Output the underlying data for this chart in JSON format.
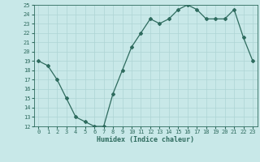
{
  "x": [
    0,
    1,
    2,
    3,
    4,
    5,
    6,
    7,
    8,
    9,
    10,
    11,
    12,
    13,
    14,
    15,
    16,
    17,
    18,
    19,
    20,
    21,
    22,
    23
  ],
  "y": [
    19,
    18.5,
    17,
    15,
    13,
    12.5,
    12,
    12,
    15.5,
    18,
    20.5,
    22,
    23.5,
    23,
    23.5,
    24.5,
    25,
    24.5,
    23.5,
    23.5,
    23.5,
    24.5,
    21.5,
    19
  ],
  "xlabel": "Humidex (Indice chaleur)",
  "ylim": [
    12,
    25
  ],
  "xlim": [
    -0.5,
    23.5
  ],
  "yticks": [
    12,
    13,
    14,
    15,
    16,
    17,
    18,
    19,
    20,
    21,
    22,
    23,
    24,
    25
  ],
  "xticks": [
    0,
    1,
    2,
    3,
    4,
    5,
    6,
    7,
    8,
    9,
    10,
    11,
    12,
    13,
    14,
    15,
    16,
    17,
    18,
    19,
    20,
    21,
    22,
    23
  ],
  "line_color": "#2e6b5e",
  "marker": "D",
  "marker_size": 2,
  "bg_color": "#c8e8e8",
  "grid_color": "#aed4d4",
  "tick_color": "#2e6b5e",
  "label_color": "#2e6b5e",
  "font_family": "monospace"
}
